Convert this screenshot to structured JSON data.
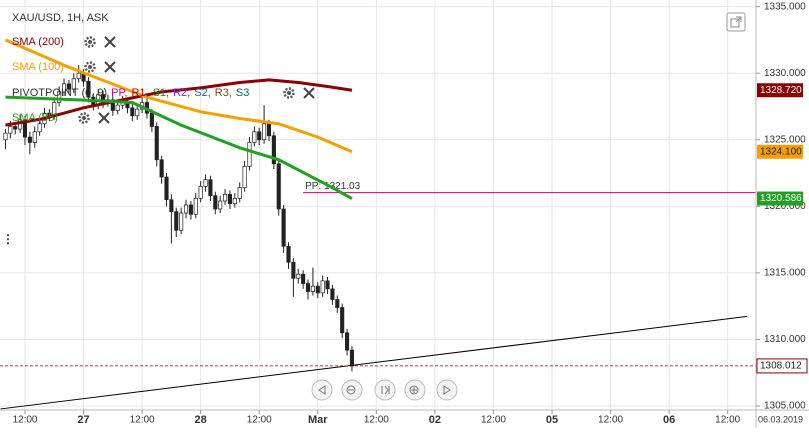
{
  "chart_data": {
    "type": "candlestick",
    "title": "XAU/USD, 1H, ASK",
    "x": [
      -4,
      -3,
      -2,
      -1,
      0,
      1,
      2,
      3,
      4,
      5,
      6,
      7,
      8,
      9,
      10,
      11,
      12,
      13,
      14,
      15,
      16,
      17,
      18,
      19,
      20,
      21,
      22,
      23,
      24,
      25,
      26,
      27,
      28,
      29,
      30,
      31,
      32,
      33,
      34,
      35,
      36,
      37,
      38,
      39,
      40,
      41,
      42,
      43,
      44,
      45,
      46,
      47,
      48,
      49,
      50,
      51,
      52,
      53,
      54,
      55,
      56,
      57,
      58,
      59,
      60,
      61,
      62,
      63,
      64,
      65,
      66,
      67
    ],
    "open": [
      1325.0,
      1325.5,
      1326.0,
      1325.8,
      1326.5,
      1325.2,
      1324.8,
      1325.6,
      1326.2,
      1327.0,
      1326.8,
      1327.8,
      1328.6,
      1329.2,
      1328.8,
      1329.6,
      1330.0,
      1329.4,
      1328.2,
      1327.6,
      1328.4,
      1327.8,
      1328.0,
      1327.2,
      1327.6,
      1327.9,
      1327.4,
      1326.8,
      1327.3,
      1327.8,
      1327.0,
      1326.0,
      1323.5,
      1322.2,
      1320.5,
      1319.6,
      1318.2,
      1319.5,
      1320.1,
      1319.4,
      1320.6,
      1321.5,
      1322.0,
      1320.8,
      1319.8,
      1320.4,
      1320.9,
      1320.2,
      1320.6,
      1321.4,
      1323.0,
      1324.8,
      1325.6,
      1325.0,
      1326.2,
      1325.3,
      1323.2,
      1319.8,
      1317.0,
      1315.8,
      1314.6,
      1314.9,
      1314.2,
      1313.6,
      1314.0,
      1313.5,
      1314.4,
      1313.8,
      1313.0,
      1312.4,
      1310.5,
      1309.2
    ],
    "high": [
      1325.8,
      1326.4,
      1326.3,
      1326.9,
      1326.8,
      1325.6,
      1326.0,
      1326.6,
      1327.4,
      1327.3,
      1328.2,
      1329.0,
      1329.6,
      1329.5,
      1330.0,
      1330.6,
      1330.3,
      1329.7,
      1328.5,
      1328.8,
      1328.7,
      1328.4,
      1328.3,
      1328.0,
      1328.3,
      1328.2,
      1327.7,
      1327.7,
      1328.2,
      1328.1,
      1327.3,
      1326.3,
      1323.8,
      1322.5,
      1320.9,
      1319.9,
      1319.9,
      1320.5,
      1320.4,
      1321.0,
      1321.9,
      1322.4,
      1322.3,
      1321.1,
      1320.8,
      1321.3,
      1321.2,
      1321.0,
      1321.8,
      1323.4,
      1325.2,
      1326.0,
      1325.9,
      1327.6,
      1326.5,
      1325.6,
      1323.5,
      1320.1,
      1317.3,
      1316.1,
      1315.3,
      1315.2,
      1314.5,
      1315.4,
      1314.3,
      1314.8,
      1314.7,
      1314.1,
      1313.3,
      1312.7,
      1310.8,
      1309.5
    ],
    "low": [
      1324.3,
      1325.1,
      1325.4,
      1325.5,
      1324.6,
      1323.9,
      1324.4,
      1325.3,
      1325.9,
      1326.4,
      1326.5,
      1327.5,
      1328.3,
      1328.4,
      1328.5,
      1329.3,
      1329.0,
      1327.8,
      1327.2,
      1327.3,
      1327.4,
      1327.5,
      1326.8,
      1326.9,
      1327.3,
      1327.0,
      1326.4,
      1326.5,
      1327.0,
      1326.6,
      1325.6,
      1323.0,
      1321.7,
      1320.0,
      1317.2,
      1317.7,
      1317.9,
      1319.1,
      1319.0,
      1319.1,
      1320.3,
      1321.1,
      1320.4,
      1319.4,
      1319.5,
      1320.1,
      1319.8,
      1319.9,
      1320.3,
      1321.1,
      1322.7,
      1324.5,
      1324.6,
      1324.7,
      1324.9,
      1322.8,
      1319.3,
      1316.5,
      1315.3,
      1313.2,
      1314.2,
      1313.8,
      1313.0,
      1313.3,
      1313.1,
      1313.2,
      1313.4,
      1312.6,
      1312.0,
      1310.1,
      1308.8,
      1307.6
    ],
    "close": [
      1325.5,
      1326.0,
      1325.8,
      1326.5,
      1325.2,
      1324.8,
      1325.6,
      1326.2,
      1327.0,
      1326.8,
      1327.8,
      1328.6,
      1329.2,
      1328.8,
      1329.6,
      1330.0,
      1329.4,
      1328.2,
      1327.6,
      1328.4,
      1327.8,
      1328.0,
      1327.2,
      1327.6,
      1327.9,
      1327.4,
      1326.8,
      1327.3,
      1327.8,
      1327.0,
      1326.0,
      1323.5,
      1322.2,
      1320.5,
      1319.6,
      1318.2,
      1319.5,
      1320.1,
      1319.4,
      1320.6,
      1321.5,
      1322.0,
      1320.8,
      1319.8,
      1320.4,
      1320.9,
      1320.2,
      1320.6,
      1321.4,
      1323.0,
      1324.8,
      1325.6,
      1325.0,
      1326.2,
      1325.3,
      1323.2,
      1319.8,
      1317.0,
      1315.8,
      1314.6,
      1314.9,
      1314.2,
      1313.6,
      1314.0,
      1313.5,
      1314.4,
      1313.8,
      1313.0,
      1312.4,
      1310.5,
      1309.2,
      1308.0
    ],
    "up_color": "#ffffff",
    "down_color": "#222222",
    "overlays": [
      {
        "name": "SMA (200)",
        "color": "#8b0000",
        "x": [
          -4,
          4,
          12,
          20,
          28,
          36,
          44,
          50,
          56,
          62,
          67
        ],
        "values": [
          1326.1,
          1326.6,
          1327.4,
          1328.0,
          1328.6,
          1328.9,
          1329.3,
          1329.5,
          1329.3,
          1329.0,
          1328.72
        ],
        "last_label": "1328.720"
      },
      {
        "name": "SMA (100)",
        "color": "#f5a000",
        "x": [
          -4,
          3,
          8,
          15,
          25,
          36,
          44,
          52,
          60,
          67
        ],
        "values": [
          1332.5,
          1331.4,
          1330.6,
          1329.6,
          1328.2,
          1327.1,
          1326.6,
          1326.2,
          1325.2,
          1324.1
        ],
        "last_label": "1324.100"
      },
      {
        "name": "SMA (55)",
        "color": "#22a022",
        "x": [
          -4,
          11,
          22,
          32,
          44,
          52,
          62,
          67
        ],
        "values": [
          1328.2,
          1328.0,
          1327.8,
          1326.1,
          1324.4,
          1323.5,
          1321.6,
          1320.586
        ],
        "last_label": "1320.586"
      }
    ],
    "pivot": {
      "name": "PIVOTPOINT (0, 9)",
      "levels": [
        "PP,",
        "R1,",
        "S1,",
        "R2,",
        "S2,",
        "R3,",
        "S3"
      ],
      "level_colors": [
        "#cc0088",
        "#b00000",
        "#228822",
        "#8a2be2",
        "#2266aa",
        "#8b4513",
        "#006666"
      ],
      "pp": {
        "value": 1321.031,
        "label": "PP: 1321.03",
        "x": 57
      },
      "color": "#cc0088"
    },
    "trendline": {
      "x": [
        -5,
        148
      ],
      "values": [
        1304.78,
        1311.73
      ],
      "color": "#000000"
    },
    "current_price": {
      "value": 1308.012,
      "label": "1308.012",
      "color": "#8b0000"
    },
    "xlim": [
      -5.12,
      149.8
    ],
    "xticks": [
      {
        "value": 0,
        "label": "12:00"
      },
      {
        "value": 12,
        "label": "27"
      },
      {
        "value": 24,
        "label": "12:00"
      },
      {
        "value": 36,
        "label": "28"
      },
      {
        "value": 48,
        "label": "12:00"
      },
      {
        "value": 60,
        "label": "Mar"
      },
      {
        "value": 72,
        "label": "12:00"
      },
      {
        "value": 84,
        "label": "02"
      },
      {
        "value": 96,
        "label": "12:00"
      },
      {
        "value": 108,
        "label": "05"
      },
      {
        "value": 120,
        "label": "12:00"
      },
      {
        "value": 132,
        "label": "06"
      },
      {
        "value": 144,
        "label": "12:00"
      }
    ],
    "date_label": "06.03.2019",
    "ylim": [
      1304.7,
      1335.5
    ],
    "yticks": [
      {
        "value": 1305,
        "label": "1305.000"
      },
      {
        "value": 1310,
        "label": "1310.000"
      },
      {
        "value": 1315,
        "label": "1315.000"
      },
      {
        "value": 1320,
        "label": "1320.000"
      },
      {
        "value": 1325,
        "label": "1325.000"
      },
      {
        "value": 1330,
        "label": "1330.000"
      },
      {
        "value": 1335,
        "label": "1335.000"
      }
    ],
    "grid": true
  }
}
